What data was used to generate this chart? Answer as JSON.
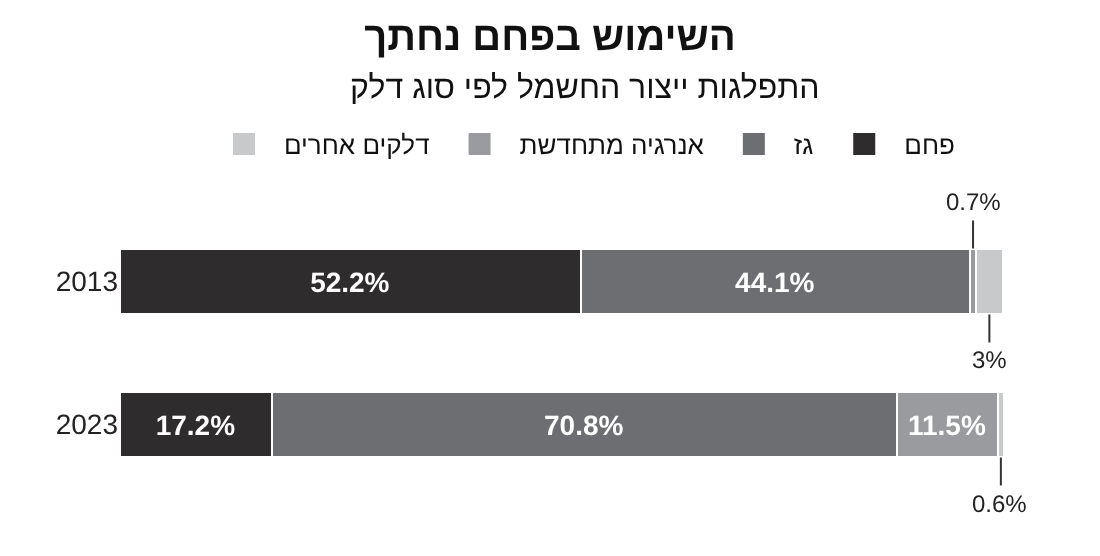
{
  "chart_data": {
    "type": "bar",
    "orientation": "horizontal",
    "stacked": true,
    "title": "השימוש בפחם נחתך",
    "subtitle": "התפלגות ייצור החשמל לפי סוג דלק",
    "categories": [
      "2013",
      "2023"
    ],
    "series": [
      {
        "name": "פחם",
        "color": "#2e2c2d",
        "values": [
          52.2,
          17.2
        ],
        "value_labels": [
          "52.2%",
          "17.2%"
        ]
      },
      {
        "name": "גז",
        "color": "#6d6e71",
        "values": [
          44.1,
          70.8
        ],
        "value_labels": [
          "44.1%",
          "70.8%"
        ]
      },
      {
        "name": "אנרגיה מתחדשת",
        "color": "#9a9b9e",
        "values": [
          0.7,
          11.5
        ],
        "value_labels": [
          "0.7%",
          "11.5%"
        ]
      },
      {
        "name": "דלקים אחרים",
        "color": "#c8c9cb",
        "values": [
          3,
          0.6
        ],
        "value_labels": [
          "3%",
          "0.6%"
        ]
      }
    ],
    "legend": "top"
  }
}
